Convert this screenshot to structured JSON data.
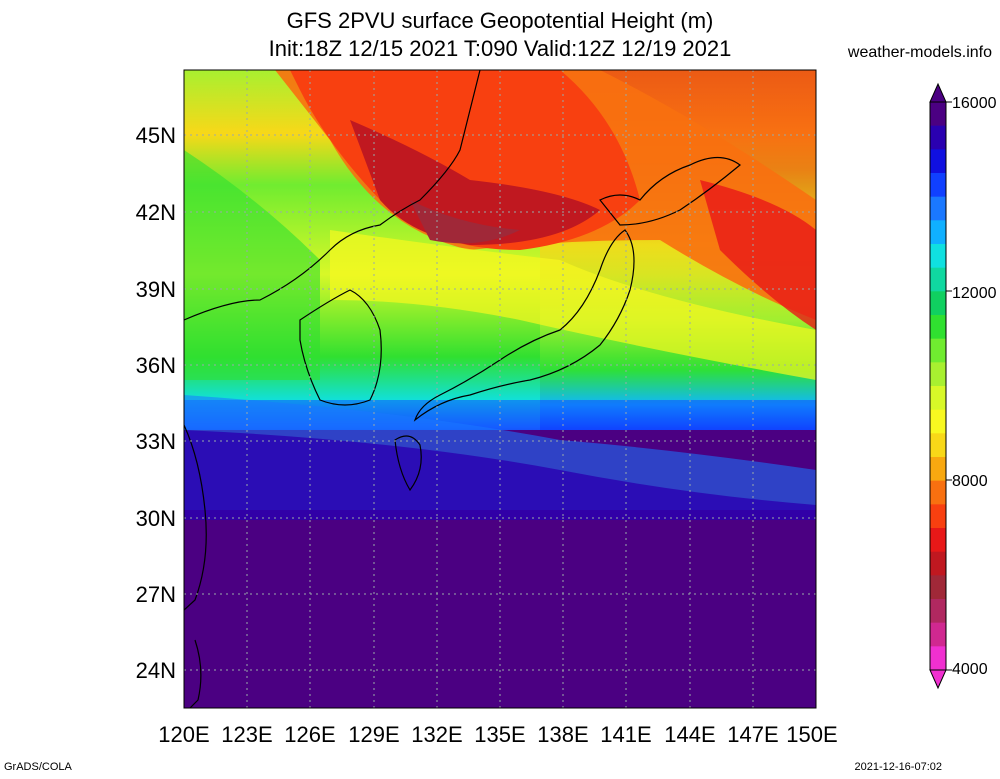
{
  "header": {
    "title_line1": "GFS 2PVU surface Geopotential Height (m)",
    "title_line2": "Init:18Z 12/15 2021 T:090 Valid:12Z 12/19 2021",
    "site": "weather-models.info"
  },
  "axes": {
    "lat_labels": [
      "45N",
      "42N",
      "39N",
      "36N",
      "33N",
      "30N",
      "27N",
      "24N"
    ],
    "lon_labels": [
      "120E",
      "123E",
      "126E",
      "129E",
      "132E",
      "135E",
      "138E",
      "141E",
      "144E",
      "147E",
      "150E"
    ]
  },
  "colorbar": {
    "labels": [
      "16000",
      "12000",
      "8000",
      "4000"
    ],
    "colors": [
      "#4b0082",
      "#2a00b0",
      "#1010e0",
      "#1040ff",
      "#1a78ff",
      "#10b0ff",
      "#10e0e0",
      "#10d8a0",
      "#10d060",
      "#30e030",
      "#70ec30",
      "#a8f030",
      "#d8f828",
      "#f8f820",
      "#f8d818",
      "#f8a810",
      "#f87010",
      "#f84010",
      "#e81818",
      "#c01820",
      "#a02838",
      "#b02860",
      "#d02890",
      "#f030d0"
    ],
    "min_label": "4000",
    "max_label": "16000"
  },
  "footer": {
    "left": "GrADS/COLA",
    "right": "2021-12-16-07:02"
  }
}
